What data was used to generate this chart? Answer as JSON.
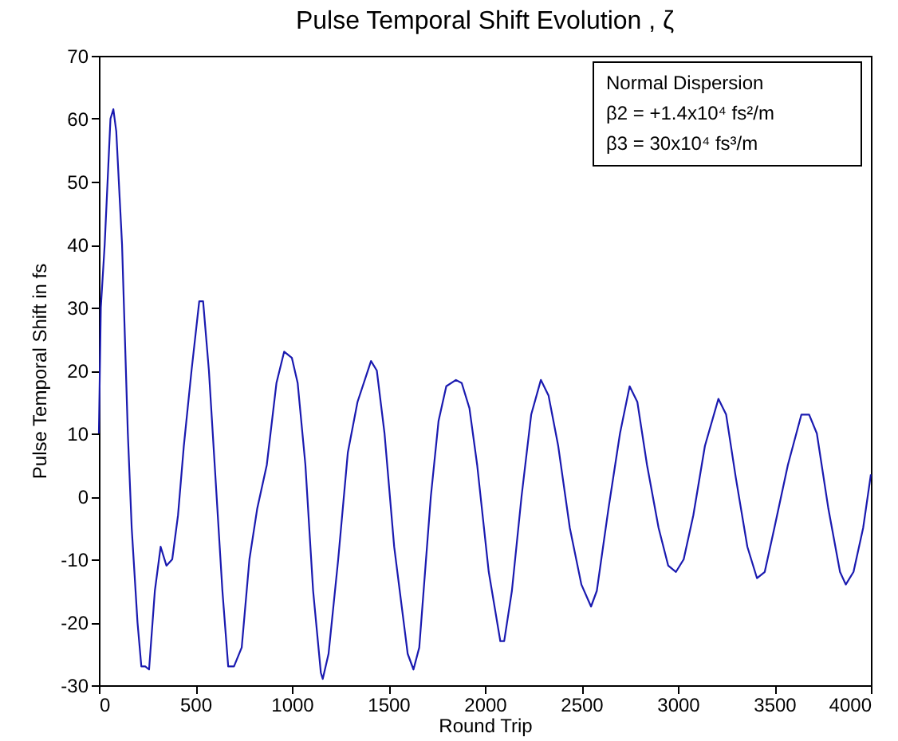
{
  "chart_data": {
    "type": "line",
    "title": "Pulse Temporal Shift Evolution , ζ",
    "xlabel": "Round  Trip",
    "ylabel": "Pulse  Temporal Shift  in  fs",
    "annotations": [
      "Normal  Dispersion",
      "β2 = +1.4x10⁴ fs²/m",
      "β3 = 30x10⁴  fs³/m"
    ],
    "xlim": [
      0,
      4000
    ],
    "xticks": [
      0,
      500,
      1000,
      1500,
      2000,
      2500,
      3000,
      3500,
      4000
    ],
    "ylim": [
      -30,
      70
    ],
    "yticks": [
      -30,
      -20,
      -10,
      0,
      10,
      20,
      30,
      40,
      50,
      60,
      70
    ],
    "grid": false,
    "marker": "none",
    "line_style": "solid",
    "series": [
      {
        "color": "#1a1ab0",
        "x": [
          0,
          10,
          30,
          60,
          75,
          90,
          120,
          150,
          170,
          200,
          220,
          240,
          260,
          290,
          320,
          350,
          380,
          410,
          440,
          480,
          520,
          540,
          570,
          600,
          640,
          670,
          700,
          740,
          780,
          820,
          870,
          920,
          960,
          1000,
          1030,
          1070,
          1110,
          1150,
          1160,
          1190,
          1240,
          1290,
          1340,
          1410,
          1440,
          1480,
          1530,
          1600,
          1630,
          1660,
          1720,
          1760,
          1800,
          1850,
          1880,
          1920,
          1960,
          2020,
          2080,
          2100,
          2140,
          2190,
          2240,
          2290,
          2330,
          2380,
          2440,
          2500,
          2550,
          2580,
          2640,
          2700,
          2750,
          2790,
          2840,
          2900,
          2950,
          2990,
          3030,
          3080,
          3140,
          3210,
          3250,
          3300,
          3360,
          3410,
          3450,
          3500,
          3570,
          3640,
          3680,
          3720,
          3780,
          3840,
          3870,
          3910,
          3960,
          4000
        ],
        "values": [
          10,
          30,
          40,
          60,
          61.5,
          58,
          40,
          10,
          -5,
          -20,
          -27,
          -27,
          -27.5,
          -15,
          -8,
          -11,
          -10,
          -3,
          8,
          20,
          31,
          31,
          20,
          5,
          -15,
          -27,
          -27,
          -24,
          -10,
          -2,
          5,
          18,
          23,
          22,
          18,
          5,
          -15,
          -28,
          -29,
          -25,
          -10,
          7,
          15,
          21.5,
          20,
          10,
          -8,
          -25,
          -27.5,
          -24,
          0,
          12,
          17.5,
          18.5,
          18,
          14,
          5,
          -12,
          -23,
          -23,
          -15,
          0,
          13,
          18.5,
          16,
          8,
          -5,
          -14,
          -17.5,
          -15,
          -2,
          10,
          17.5,
          15,
          5,
          -5,
          -11,
          -12,
          -10,
          -3,
          8,
          15.5,
          13,
          3,
          -8,
          -13,
          -12,
          -5,
          5,
          13,
          13,
          10,
          -2,
          -12,
          -14,
          -12,
          -5,
          3.5
        ]
      }
    ]
  }
}
